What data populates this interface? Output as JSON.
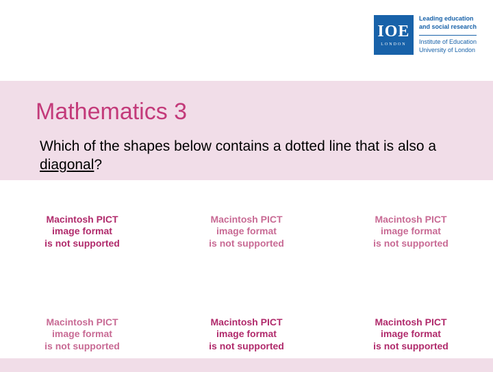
{
  "logo": {
    "big": "IOE",
    "small": "LONDON",
    "line1": "Leading education",
    "line2": "and social research",
    "line3": "Institute of Education",
    "line4": "University of London"
  },
  "title": "Mathematics 3",
  "question": {
    "part1": "Which of the shapes below contains a dotted line that is also a ",
    "underlined": "diagonal",
    "part2": "?"
  },
  "pict": {
    "line1": "Macintosh PICT",
    "line2": "image format",
    "line3": "is not supported"
  },
  "colors": {
    "background": "#f1dde8",
    "title": "#c33a7a",
    "logo_bg": "#1862a9",
    "pict_dark": "#b02a6b",
    "pict_light": "#c86a94"
  }
}
